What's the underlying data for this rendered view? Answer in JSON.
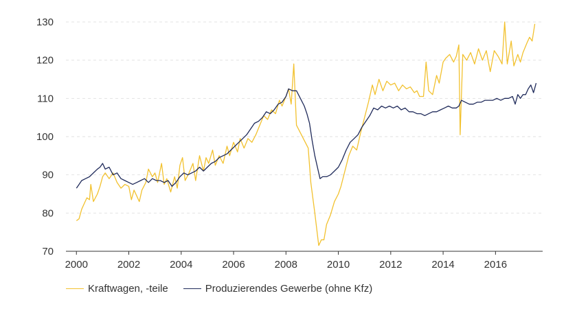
{
  "chart_data": {
    "type": "line",
    "title": "",
    "xlabel": "",
    "ylabel": "",
    "xlim": [
      1999.6,
      2017.8
    ],
    "ylim": [
      70,
      130
    ],
    "yticks": [
      70,
      80,
      90,
      100,
      110,
      120,
      130
    ],
    "xticks": [
      2000,
      2002,
      2004,
      2006,
      2008,
      2010,
      2012,
      2014,
      2016
    ],
    "grid": "horizontal dashed",
    "legend_position": "bottom-left",
    "series": [
      {
        "name": "Kraftwagen, -teile",
        "color": "#f2c12e",
        "points": [
          [
            2000.0,
            78
          ],
          [
            2000.1,
            78.5
          ],
          [
            2000.2,
            81
          ],
          [
            2000.3,
            82.5
          ],
          [
            2000.4,
            84
          ],
          [
            2000.5,
            83.5
          ],
          [
            2000.55,
            87.5
          ],
          [
            2000.65,
            83
          ],
          [
            2000.8,
            85
          ],
          [
            2000.9,
            87
          ],
          [
            2001.0,
            89.5
          ],
          [
            2001.1,
            90.5
          ],
          [
            2001.25,
            89
          ],
          [
            2001.4,
            90.5
          ],
          [
            2001.55,
            88
          ],
          [
            2001.7,
            86.5
          ],
          [
            2001.85,
            87.5
          ],
          [
            2002.0,
            87
          ],
          [
            2002.1,
            83.5
          ],
          [
            2002.2,
            86
          ],
          [
            2002.3,
            84.5
          ],
          [
            2002.4,
            83
          ],
          [
            2002.5,
            86
          ],
          [
            2002.65,
            88
          ],
          [
            2002.75,
            91.5
          ],
          [
            2002.9,
            89.5
          ],
          [
            2003.0,
            90.5
          ],
          [
            2003.1,
            88
          ],
          [
            2003.25,
            93
          ],
          [
            2003.35,
            87.5
          ],
          [
            2003.45,
            89
          ],
          [
            2003.6,
            85.5
          ],
          [
            2003.75,
            89.5
          ],
          [
            2003.85,
            86.5
          ],
          [
            2003.95,
            92.5
          ],
          [
            2004.05,
            94.5
          ],
          [
            2004.15,
            88.5
          ],
          [
            2004.3,
            90.5
          ],
          [
            2004.45,
            93
          ],
          [
            2004.55,
            88.5
          ],
          [
            2004.7,
            95
          ],
          [
            2004.85,
            91
          ],
          [
            2004.95,
            94.5
          ],
          [
            2005.05,
            93
          ],
          [
            2005.2,
            96.5
          ],
          [
            2005.3,
            92.5
          ],
          [
            2005.45,
            95
          ],
          [
            2005.6,
            93
          ],
          [
            2005.75,
            97.5
          ],
          [
            2005.85,
            95
          ],
          [
            2006.0,
            98.5
          ],
          [
            2006.15,
            96
          ],
          [
            2006.25,
            99.5
          ],
          [
            2006.4,
            97
          ],
          [
            2006.55,
            99.5
          ],
          [
            2006.7,
            98.5
          ],
          [
            2006.85,
            100.5
          ],
          [
            2007.0,
            103
          ],
          [
            2007.15,
            105.5
          ],
          [
            2007.3,
            104.5
          ],
          [
            2007.45,
            107
          ],
          [
            2007.6,
            106
          ],
          [
            2007.75,
            109.5
          ],
          [
            2007.85,
            108
          ],
          [
            2008.0,
            110.5
          ],
          [
            2008.1,
            112.5
          ],
          [
            2008.2,
            108.5
          ],
          [
            2008.3,
            119
          ],
          [
            2008.4,
            103
          ],
          [
            2008.55,
            101
          ],
          [
            2008.7,
            99
          ],
          [
            2008.85,
            97
          ],
          [
            2008.95,
            88
          ],
          [
            2009.1,
            80
          ],
          [
            2009.25,
            71.5
          ],
          [
            2009.35,
            73
          ],
          [
            2009.45,
            73
          ],
          [
            2009.55,
            77
          ],
          [
            2009.7,
            79.5
          ],
          [
            2009.85,
            83
          ],
          [
            2010.0,
            85
          ],
          [
            2010.1,
            87
          ],
          [
            2010.25,
            91
          ],
          [
            2010.4,
            95
          ],
          [
            2010.55,
            97.5
          ],
          [
            2010.7,
            96.5
          ],
          [
            2010.85,
            101
          ],
          [
            2011.0,
            105
          ],
          [
            2011.15,
            109
          ],
          [
            2011.3,
            113.5
          ],
          [
            2011.4,
            111
          ],
          [
            2011.55,
            115
          ],
          [
            2011.7,
            112
          ],
          [
            2011.85,
            114.5
          ],
          [
            2012.0,
            113.5
          ],
          [
            2012.15,
            114
          ],
          [
            2012.3,
            112
          ],
          [
            2012.45,
            113.5
          ],
          [
            2012.6,
            112.5
          ],
          [
            2012.75,
            113
          ],
          [
            2012.9,
            111.5
          ],
          [
            2013.0,
            112
          ],
          [
            2013.1,
            110.5
          ],
          [
            2013.25,
            110.5
          ],
          [
            2013.35,
            119.5
          ],
          [
            2013.45,
            112
          ],
          [
            2013.6,
            111
          ],
          [
            2013.75,
            116
          ],
          [
            2013.85,
            114
          ],
          [
            2014.0,
            119.5
          ],
          [
            2014.1,
            120.5
          ],
          [
            2014.25,
            121.5
          ],
          [
            2014.4,
            119.5
          ],
          [
            2014.5,
            121
          ],
          [
            2014.6,
            124
          ],
          [
            2014.65,
            100.5
          ],
          [
            2014.75,
            121.5
          ],
          [
            2014.9,
            120
          ],
          [
            2015.05,
            122
          ],
          [
            2015.2,
            119
          ],
          [
            2015.35,
            123
          ],
          [
            2015.5,
            120
          ],
          [
            2015.65,
            122.5
          ],
          [
            2015.8,
            117
          ],
          [
            2015.95,
            122.5
          ],
          [
            2016.1,
            121
          ],
          [
            2016.25,
            119
          ],
          [
            2016.35,
            130
          ],
          [
            2016.45,
            119
          ],
          [
            2016.6,
            125
          ],
          [
            2016.7,
            118.5
          ],
          [
            2016.85,
            121.5
          ],
          [
            2016.95,
            119.5
          ],
          [
            2017.05,
            122
          ],
          [
            2017.2,
            124.5
          ],
          [
            2017.3,
            126
          ],
          [
            2017.4,
            125
          ],
          [
            2017.5,
            129.5
          ]
        ]
      },
      {
        "name": "Produzierendes Gewerbe (ohne Kfz)",
        "color": "#1f2a5a",
        "points": [
          [
            2000.0,
            86.5
          ],
          [
            2000.1,
            87.5
          ],
          [
            2000.2,
            88.5
          ],
          [
            2000.35,
            89
          ],
          [
            2000.5,
            89.5
          ],
          [
            2000.65,
            90.5
          ],
          [
            2000.8,
            91.5
          ],
          [
            2000.9,
            92
          ],
          [
            2001.0,
            93
          ],
          [
            2001.1,
            91.5
          ],
          [
            2001.25,
            92
          ],
          [
            2001.4,
            90
          ],
          [
            2001.55,
            90.5
          ],
          [
            2001.7,
            89
          ],
          [
            2001.85,
            88.5
          ],
          [
            2002.0,
            88
          ],
          [
            2002.15,
            87.5
          ],
          [
            2002.3,
            88
          ],
          [
            2002.45,
            88.5
          ],
          [
            2002.6,
            89
          ],
          [
            2002.75,
            88
          ],
          [
            2002.9,
            89
          ],
          [
            2003.05,
            88.5
          ],
          [
            2003.2,
            88.5
          ],
          [
            2003.35,
            88
          ],
          [
            2003.5,
            88.5
          ],
          [
            2003.65,
            87
          ],
          [
            2003.8,
            88
          ],
          [
            2003.95,
            89.5
          ],
          [
            2004.1,
            90.5
          ],
          [
            2004.25,
            90
          ],
          [
            2004.4,
            90.5
          ],
          [
            2004.55,
            91
          ],
          [
            2004.7,
            92
          ],
          [
            2004.85,
            91
          ],
          [
            2005.0,
            92
          ],
          [
            2005.15,
            93
          ],
          [
            2005.3,
            93.5
          ],
          [
            2005.45,
            94.5
          ],
          [
            2005.6,
            95
          ],
          [
            2005.75,
            95.5
          ],
          [
            2005.9,
            96.5
          ],
          [
            2006.05,
            97.5
          ],
          [
            2006.2,
            98.5
          ],
          [
            2006.35,
            99.5
          ],
          [
            2006.5,
            100.5
          ],
          [
            2006.65,
            102
          ],
          [
            2006.8,
            103.5
          ],
          [
            2006.95,
            104
          ],
          [
            2007.1,
            105
          ],
          [
            2007.25,
            106.5
          ],
          [
            2007.4,
            106
          ],
          [
            2007.55,
            107
          ],
          [
            2007.7,
            108.5
          ],
          [
            2007.85,
            109
          ],
          [
            2008.0,
            110.5
          ],
          [
            2008.1,
            112.5
          ],
          [
            2008.25,
            112
          ],
          [
            2008.4,
            112
          ],
          [
            2008.55,
            110
          ],
          [
            2008.7,
            108
          ],
          [
            2008.8,
            106
          ],
          [
            2008.9,
            103.5
          ],
          [
            2009.0,
            99
          ],
          [
            2009.1,
            95
          ],
          [
            2009.2,
            92
          ],
          [
            2009.3,
            89
          ],
          [
            2009.4,
            89.5
          ],
          [
            2009.55,
            89.5
          ],
          [
            2009.7,
            90
          ],
          [
            2009.85,
            91
          ],
          [
            2010.0,
            92
          ],
          [
            2010.15,
            94
          ],
          [
            2010.3,
            96.5
          ],
          [
            2010.45,
            98.5
          ],
          [
            2010.6,
            99.5
          ],
          [
            2010.75,
            100.5
          ],
          [
            2010.9,
            102.5
          ],
          [
            2011.05,
            104
          ],
          [
            2011.2,
            105.5
          ],
          [
            2011.35,
            107.5
          ],
          [
            2011.5,
            107
          ],
          [
            2011.65,
            108
          ],
          [
            2011.8,
            107.5
          ],
          [
            2011.95,
            108
          ],
          [
            2012.1,
            107.5
          ],
          [
            2012.25,
            108
          ],
          [
            2012.4,
            107
          ],
          [
            2012.55,
            107.5
          ],
          [
            2012.7,
            106.5
          ],
          [
            2012.85,
            106.5
          ],
          [
            2013.0,
            106
          ],
          [
            2013.15,
            106
          ],
          [
            2013.3,
            105.5
          ],
          [
            2013.45,
            106
          ],
          [
            2013.6,
            106.5
          ],
          [
            2013.75,
            106.5
          ],
          [
            2013.9,
            107
          ],
          [
            2014.05,
            107.5
          ],
          [
            2014.2,
            108
          ],
          [
            2014.35,
            107.5
          ],
          [
            2014.5,
            107.5
          ],
          [
            2014.6,
            108
          ],
          [
            2014.7,
            109.5
          ],
          [
            2014.85,
            109
          ],
          [
            2015.0,
            108.5
          ],
          [
            2015.15,
            108.5
          ],
          [
            2015.3,
            109
          ],
          [
            2015.45,
            109
          ],
          [
            2015.6,
            109.5
          ],
          [
            2015.75,
            109.5
          ],
          [
            2015.9,
            109.5
          ],
          [
            2016.05,
            110
          ],
          [
            2016.2,
            109.5
          ],
          [
            2016.35,
            110
          ],
          [
            2016.5,
            110
          ],
          [
            2016.65,
            110.5
          ],
          [
            2016.75,
            108.5
          ],
          [
            2016.85,
            111
          ],
          [
            2016.95,
            110
          ],
          [
            2017.05,
            111
          ],
          [
            2017.15,
            111
          ],
          [
            2017.25,
            112.5
          ],
          [
            2017.35,
            113.5
          ],
          [
            2017.45,
            111.5
          ],
          [
            2017.55,
            114
          ]
        ]
      }
    ]
  }
}
